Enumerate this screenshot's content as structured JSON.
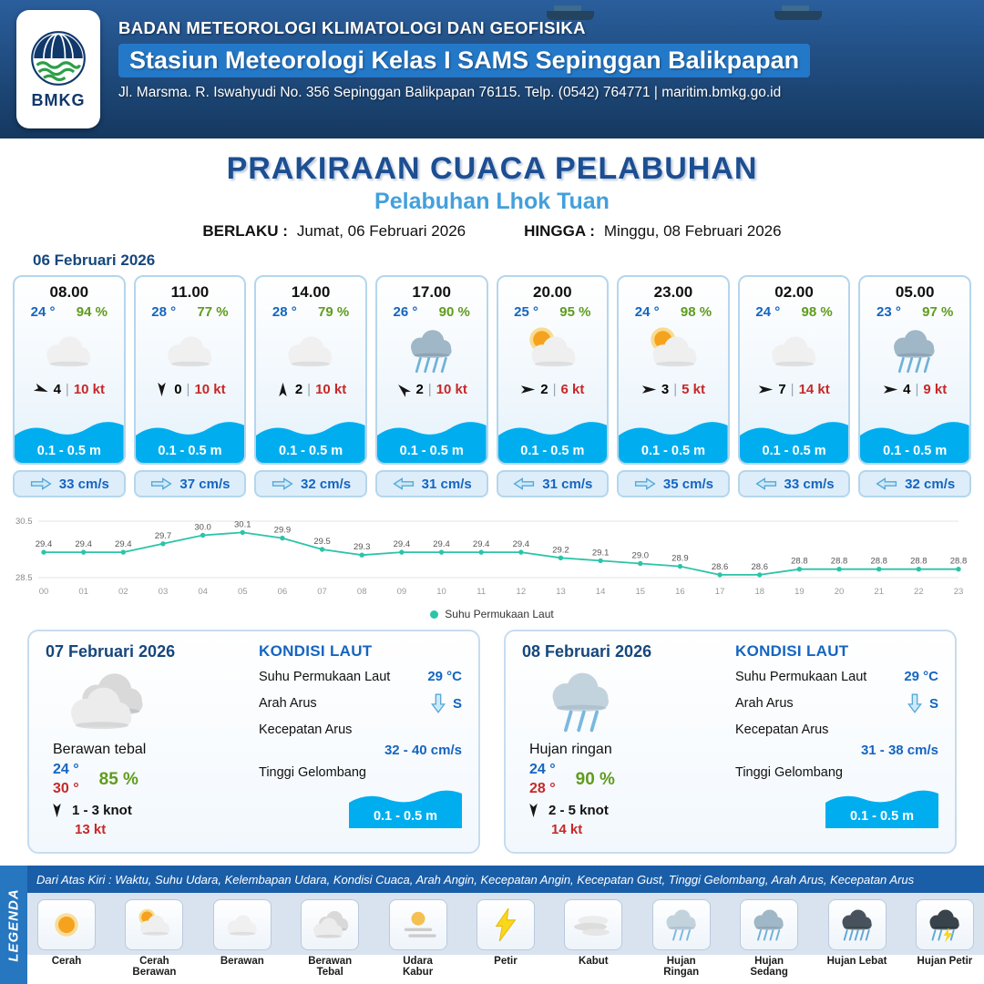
{
  "header": {
    "org": "BADAN METEOROLOGI KLIMATOLOGI DAN GEOFISIKA",
    "station": "Stasiun Meteorologi Kelas I SAMS Sepinggan Balikpapan",
    "address": "Jl. Marsma. R. Iswahyudi No. 356 Sepinggan Balikpapan 76115. Telp. (0542) 764771 | maritim.bmkg.go.id",
    "logo_text": "BMKG"
  },
  "page": {
    "title": "PRAKIRAAN CUACA PELABUHAN",
    "subtitle": "Pelabuhan Lhok Tuan",
    "berlaku_label": "BERLAKU :",
    "berlaku_value": "Jumat, 06 Februari 2026",
    "hingga_label": "HINGGA :",
    "hingga_value": "Minggu, 08 Februari 2026",
    "forecast_date": "06 Februari 2026"
  },
  "cards": [
    {
      "time": "08.00",
      "temp": "24 °",
      "rh": "94 %",
      "icon": "berawan",
      "wind_rot": 20,
      "wind_speed": "4",
      "gust": "10 kt",
      "wave": "0.1 - 0.5 m",
      "current_icon": "arrow_right",
      "current": "33 cm/s"
    },
    {
      "time": "11.00",
      "temp": "28 °",
      "rh": "77 %",
      "icon": "berawan",
      "wind_rot": 90,
      "wind_speed": "0",
      "gust": "10 kt",
      "wave": "0.1 - 0.5 m",
      "current_icon": "arrow_right",
      "current": "37 cm/s"
    },
    {
      "time": "14.00",
      "temp": "28 °",
      "rh": "79 %",
      "icon": "berawan",
      "wind_rot": 270,
      "wind_speed": "2",
      "gust": "10 kt",
      "wave": "0.1 - 0.5 m",
      "current_icon": "arrow_right",
      "current": "32 cm/s"
    },
    {
      "time": "17.00",
      "temp": "26 °",
      "rh": "90 %",
      "icon": "hujan_sedang",
      "wind_rot": 225,
      "wind_speed": "2",
      "gust": "10 kt",
      "wave": "0.1 - 0.5 m",
      "current_icon": "arrow_left",
      "current": "31 cm/s"
    },
    {
      "time": "20.00",
      "temp": "25 °",
      "rh": "95 %",
      "icon": "cerah_berawan",
      "wind_rot": 0,
      "wind_speed": "2",
      "gust": "6 kt",
      "wave": "0.1 - 0.5 m",
      "current_icon": "arrow_left",
      "current": "31 cm/s"
    },
    {
      "time": "23.00",
      "temp": "24 °",
      "rh": "98 %",
      "icon": "cerah_berawan",
      "wind_rot": 0,
      "wind_speed": "3",
      "gust": "5 kt",
      "wave": "0.1 - 0.5 m",
      "current_icon": "arrow_right",
      "current": "35 cm/s"
    },
    {
      "time": "02.00",
      "temp": "24 °",
      "rh": "98 %",
      "icon": "berawan",
      "wind_rot": 0,
      "wind_speed": "7",
      "gust": "14 kt",
      "wave": "0.1 - 0.5 m",
      "current_icon": "arrow_left",
      "current": "33 cm/s"
    },
    {
      "time": "05.00",
      "temp": "23 °",
      "rh": "97 %",
      "icon": "hujan_sedang",
      "wind_rot": 0,
      "wind_speed": "4",
      "gust": "9 kt",
      "wave": "0.1 - 0.5 m",
      "current_icon": "arrow_left",
      "current": "32 cm/s"
    }
  ],
  "chart_data": {
    "type": "line",
    "x": [
      "00",
      "01",
      "02",
      "03",
      "04",
      "05",
      "06",
      "07",
      "08",
      "09",
      "10",
      "11",
      "12",
      "13",
      "14",
      "15",
      "16",
      "17",
      "18",
      "19",
      "20",
      "21",
      "22",
      "23"
    ],
    "values": [
      29.4,
      29.4,
      29.4,
      29.7,
      30.0,
      30.1,
      29.9,
      29.5,
      29.3,
      29.4,
      29.4,
      29.4,
      29.4,
      29.2,
      29.1,
      29.0,
      28.9,
      28.6,
      28.6,
      28.8,
      28.8,
      28.8,
      28.8,
      28.8
    ],
    "ylim": [
      28.5,
      30.5
    ],
    "legend": "Suhu Permukaan Laut",
    "line_color": "#2bc4a9",
    "title": "",
    "xlabel": "",
    "ylabel": ""
  },
  "day_cards": [
    {
      "date": "07 Februari 2026",
      "icon": "berawan_tebal",
      "condition": "Berawan tebal",
      "temp_min": "24 °",
      "temp_max": "30 °",
      "rh": "85 %",
      "wind_rot": 90,
      "wind_range": "1 - 3 knot",
      "gust": "13 kt",
      "sea_title": "KONDISI LAUT",
      "sst_label": "Suhu Permukaan Laut",
      "sst": "29 °C",
      "current_dir_label": "Arah Arus",
      "current_dir_icon": "arrow_down",
      "current_dir": "S",
      "current_speed_label": "Kecepatan Arus",
      "current_speed": "32 - 40 cm/s",
      "wave_label": "Tinggi Gelombang",
      "wave": "0.1 - 0.5 m"
    },
    {
      "date": "08 Februari 2026",
      "icon": "hujan_ringan",
      "condition": "Hujan ringan",
      "temp_min": "24 °",
      "temp_max": "28 °",
      "rh": "90 %",
      "wind_rot": 90,
      "wind_range": "2 - 5 knot",
      "gust": "14 kt",
      "sea_title": "KONDISI LAUT",
      "sst_label": "Suhu Permukaan Laut",
      "sst": "29 °C",
      "current_dir_label": "Arah Arus",
      "current_dir_icon": "arrow_down",
      "current_dir": "S",
      "current_speed_label": "Kecepatan Arus",
      "current_speed": "31 - 38 cm/s",
      "wave_label": "Tinggi Gelombang",
      "wave": "0.1 - 0.5 m"
    }
  ],
  "legend": {
    "title": "LEGENDA",
    "note": "Dari Atas Kiri : Waktu, Suhu Udara, Kelembapan Udara, Kondisi Cuaca, Arah Angin, Kecepatan Angin, Kecepatan Gust, Tinggi Gelombang, Arah Arus, Kecepatan Arus",
    "items": [
      {
        "icon": "cerah",
        "label": "Cerah"
      },
      {
        "icon": "cerah_berawan",
        "label": "Cerah Berawan"
      },
      {
        "icon": "berawan",
        "label": "Berawan"
      },
      {
        "icon": "berawan_tebal",
        "label": "Berawan Tebal"
      },
      {
        "icon": "udara_kabur",
        "label": "Udara Kabur"
      },
      {
        "icon": "petir",
        "label": "Petir"
      },
      {
        "icon": "kabut",
        "label": "Kabut"
      },
      {
        "icon": "hujan_ringan",
        "label": "Hujan Ringan"
      },
      {
        "icon": "hujan_sedang",
        "label": "Hujan Sedang"
      },
      {
        "icon": "hujan_lebat",
        "label": "Hujan Lebat"
      },
      {
        "icon": "hujan_petir",
        "label": "Hujan Petir"
      }
    ]
  }
}
